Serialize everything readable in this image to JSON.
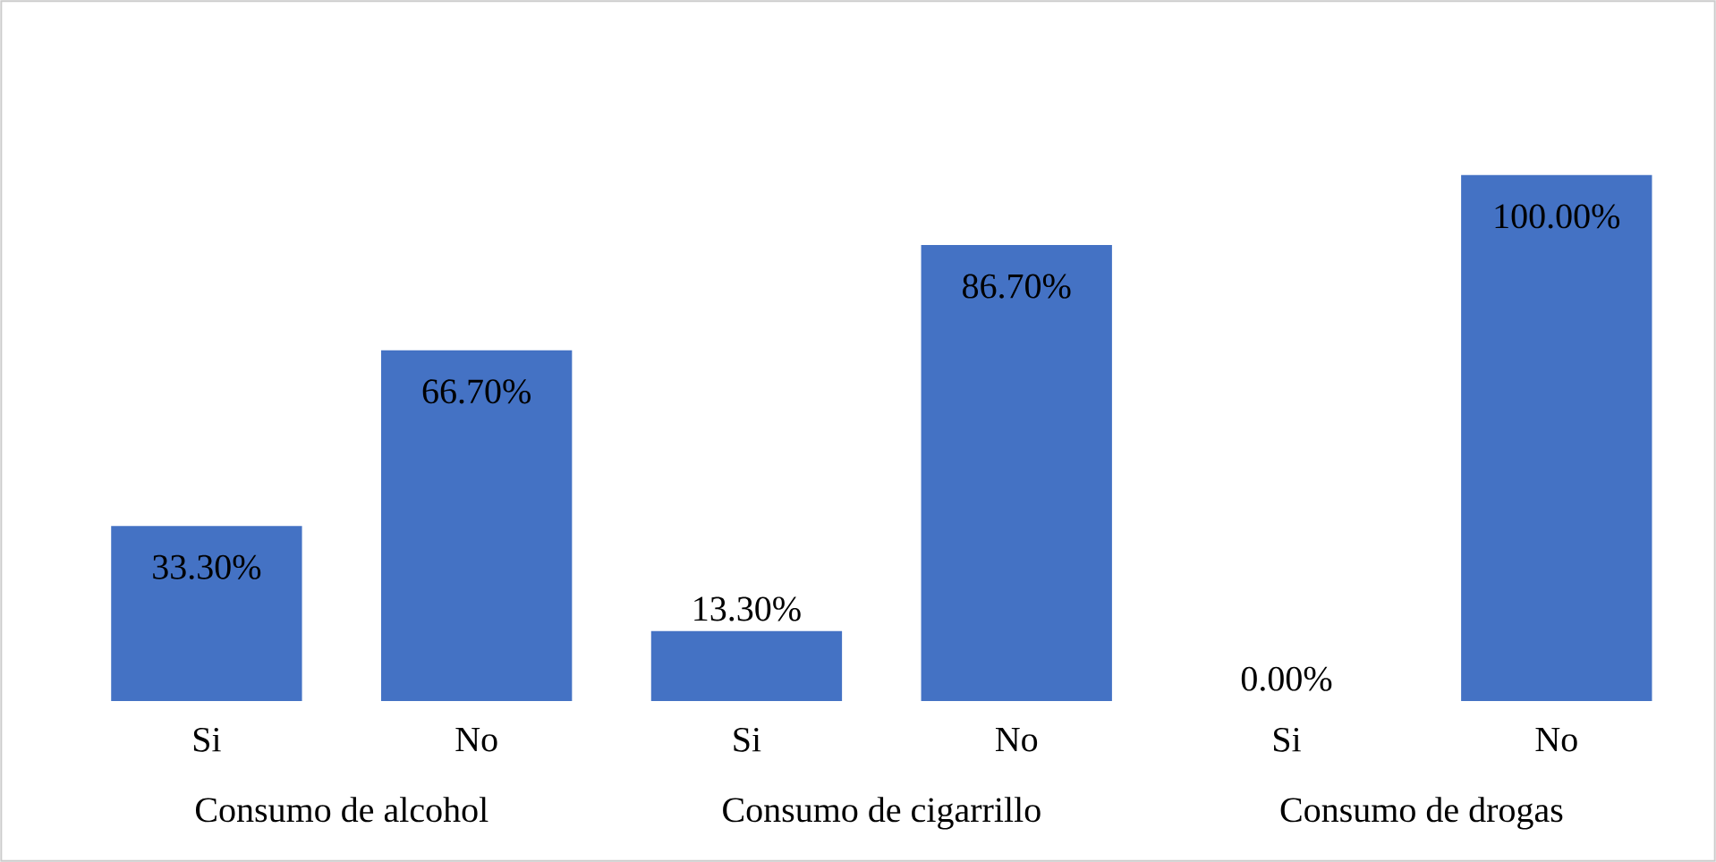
{
  "chart_data": {
    "type": "bar",
    "categories": [
      "Si",
      "No",
      "Si",
      "No",
      "Si",
      "No"
    ],
    "values": [
      33.3,
      66.7,
      13.3,
      86.7,
      0,
      100
    ],
    "value_labels": [
      "33.30%",
      "66.70%",
      "13.30%",
      "86.70%",
      "0.00%",
      "100.00%"
    ],
    "color": "#4472c4",
    "annotations": [
      "Consumo de alcohol",
      "Consumo de cigarrillo",
      "Consumo de drogas"
    ]
  }
}
